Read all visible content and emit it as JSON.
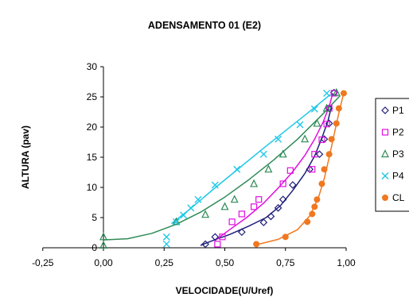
{
  "chart_data": {
    "type": "scatter",
    "title": "ADENSAMENTO 01 (E2)",
    "xlabel": "VELOCIDADE(U/Uref)",
    "ylabel": "ALTURA (pav)",
    "xlim": [
      -0.25,
      1.0
    ],
    "ylim": [
      0,
      30
    ],
    "xticks": [
      "-0,25",
      "0,00",
      "0,25",
      "0,50",
      "0,75",
      "1,00"
    ],
    "xtick_values": [
      -0.25,
      0.0,
      0.25,
      0.5,
      0.75,
      1.0
    ],
    "yticks": [
      "0",
      "5",
      "10",
      "15",
      "20",
      "25",
      "30"
    ],
    "ytick_values": [
      0,
      5,
      10,
      15,
      20,
      25,
      30
    ],
    "grid": false,
    "legend_position": "right",
    "series": [
      {
        "name": "P1",
        "color": "#1f1f7a",
        "marker": "diamond",
        "points": [
          [
            0.42,
            0.6
          ],
          [
            0.46,
            1.8
          ],
          [
            0.57,
            2.6
          ],
          [
            0.66,
            4.2
          ],
          [
            0.69,
            5.2
          ],
          [
            0.72,
            6.6
          ],
          [
            0.74,
            8.0
          ],
          [
            0.78,
            10.4
          ],
          [
            0.85,
            13.0
          ],
          [
            0.89,
            15.5
          ],
          [
            0.91,
            18.0
          ],
          [
            0.93,
            20.6
          ],
          [
            0.93,
            23.1
          ],
          [
            0.95,
            25.7
          ]
        ],
        "trend": [
          [
            0.4,
            0.4
          ],
          [
            0.45,
            1.2
          ],
          [
            0.52,
            2.2
          ],
          [
            0.6,
            3.6
          ],
          [
            0.67,
            5.0
          ],
          [
            0.73,
            7.0
          ],
          [
            0.78,
            9.5
          ],
          [
            0.83,
            12.3
          ],
          [
            0.87,
            15.2
          ],
          [
            0.9,
            18.2
          ],
          [
            0.925,
            21.0
          ],
          [
            0.94,
            23.5
          ]
        ]
      },
      {
        "name": "P2",
        "color": "#e010e0",
        "marker": "square",
        "points": [
          [
            0.47,
            0.6
          ],
          [
            0.49,
            1.8
          ],
          [
            0.53,
            4.3
          ],
          [
            0.57,
            5.6
          ],
          [
            0.62,
            6.8
          ],
          [
            0.64,
            8.0
          ],
          [
            0.74,
            10.6
          ],
          [
            0.77,
            12.8
          ],
          [
            0.86,
            13.0
          ],
          [
            0.87,
            15.5
          ],
          [
            0.9,
            17.9
          ],
          [
            0.92,
            20.5
          ],
          [
            0.93,
            23.1
          ],
          [
            0.95,
            25.6
          ]
        ],
        "trend": [
          [
            0.46,
            1.2
          ],
          [
            0.52,
            3.0
          ],
          [
            0.59,
            5.0
          ],
          [
            0.66,
            7.4
          ],
          [
            0.72,
            9.9
          ],
          [
            0.78,
            12.6
          ],
          [
            0.83,
            15.3
          ],
          [
            0.87,
            18.0
          ],
          [
            0.905,
            20.8
          ],
          [
            0.93,
            23.4
          ],
          [
            0.945,
            25.6
          ]
        ]
      },
      {
        "name": "P3",
        "color": "#2e8b57",
        "marker": "triangle",
        "points": [
          [
            0.0,
            0.4
          ],
          [
            0.0,
            1.8
          ],
          [
            0.3,
            4.3
          ],
          [
            0.42,
            5.5
          ],
          [
            0.5,
            6.8
          ],
          [
            0.54,
            8.0
          ],
          [
            0.62,
            10.6
          ],
          [
            0.68,
            13.0
          ],
          [
            0.74,
            15.5
          ],
          [
            0.83,
            18.0
          ],
          [
            0.88,
            20.6
          ],
          [
            0.92,
            23.1
          ],
          [
            0.96,
            25.7
          ]
        ],
        "trend": [
          [
            0.0,
            1.3
          ],
          [
            0.1,
            1.5
          ],
          [
            0.2,
            2.4
          ],
          [
            0.3,
            3.9
          ],
          [
            0.4,
            5.9
          ],
          [
            0.5,
            8.4
          ],
          [
            0.6,
            11.3
          ],
          [
            0.7,
            14.5
          ],
          [
            0.8,
            18.0
          ],
          [
            0.9,
            22.0
          ],
          [
            0.975,
            25.2
          ]
        ]
      },
      {
        "name": "P4",
        "color": "#1ec8e6",
        "marker": "x",
        "points": [
          [
            0.26,
            0.6
          ],
          [
            0.26,
            1.8
          ],
          [
            0.3,
            4.3
          ],
          [
            0.33,
            5.4
          ],
          [
            0.36,
            6.6
          ],
          [
            0.39,
            8.0
          ],
          [
            0.46,
            10.4
          ],
          [
            0.55,
            13.0
          ],
          [
            0.66,
            15.5
          ],
          [
            0.72,
            18.0
          ],
          [
            0.81,
            20.4
          ],
          [
            0.87,
            23.0
          ],
          [
            0.92,
            25.6
          ]
        ],
        "trend": [
          [
            0.28,
            4.0
          ],
          [
            0.35,
            6.2
          ],
          [
            0.45,
            9.6
          ],
          [
            0.55,
            12.9
          ],
          [
            0.65,
            16.2
          ],
          [
            0.75,
            19.4
          ],
          [
            0.85,
            22.6
          ],
          [
            0.935,
            25.4
          ]
        ]
      },
      {
        "name": "CL",
        "color": "#f07820",
        "marker": "circle",
        "points": [
          [
            0.63,
            0.6
          ],
          [
            0.75,
            1.8
          ],
          [
            0.84,
            4.3
          ],
          [
            0.86,
            5.6
          ],
          [
            0.87,
            6.8
          ],
          [
            0.88,
            8.0
          ],
          [
            0.9,
            10.6
          ],
          [
            0.91,
            13.0
          ],
          [
            0.93,
            15.5
          ],
          [
            0.94,
            18.0
          ],
          [
            0.96,
            20.6
          ],
          [
            0.97,
            23.1
          ],
          [
            0.99,
            25.6
          ]
        ],
        "trend": [
          [
            0.62,
            0.4
          ],
          [
            0.72,
            1.4
          ],
          [
            0.8,
            3.0
          ],
          [
            0.85,
            5.3
          ],
          [
            0.885,
            8.2
          ],
          [
            0.91,
            11.5
          ],
          [
            0.93,
            15.0
          ],
          [
            0.95,
            18.7
          ],
          [
            0.97,
            22.3
          ],
          [
            0.99,
            25.6
          ]
        ]
      }
    ]
  }
}
